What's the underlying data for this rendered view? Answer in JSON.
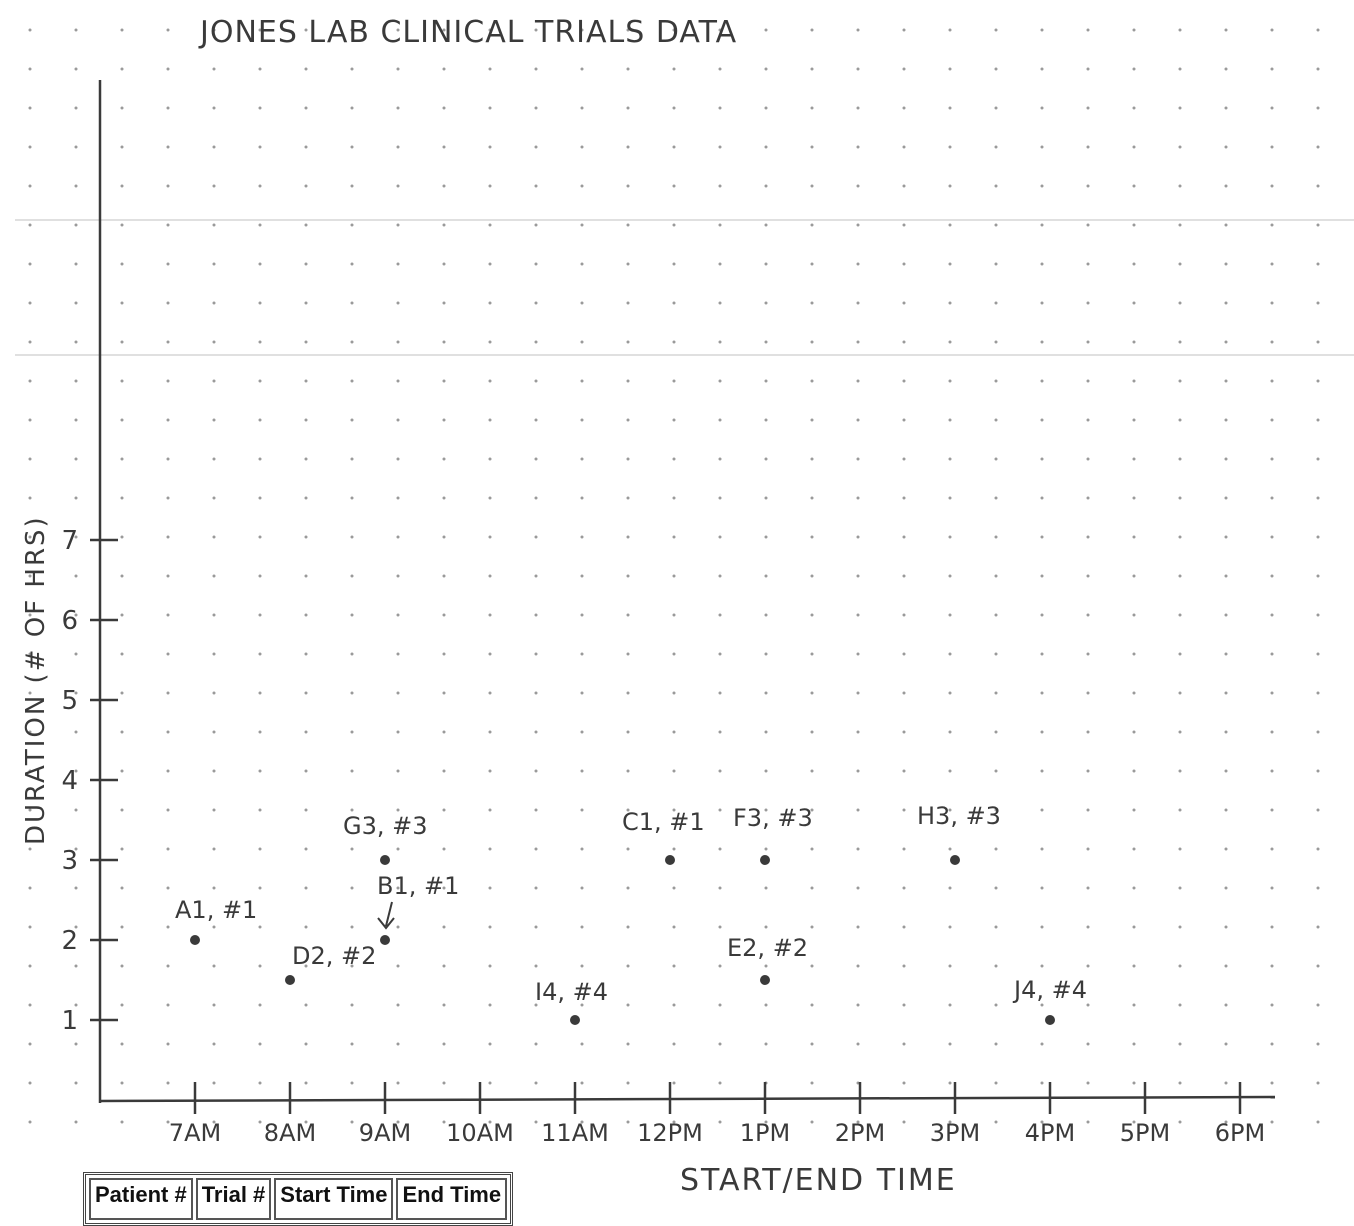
{
  "chart_data": {
    "type": "scatter",
    "title": "JONES LAB CLINICAL TRIALS DATA",
    "xlabel": "START/END TIME",
    "ylabel": "DURATION (# OF HRS)",
    "x_ticks": [
      "7AM",
      "8AM",
      "9AM",
      "10AM",
      "11AM",
      "12PM",
      "1PM",
      "2PM",
      "3PM",
      "4PM",
      "5PM",
      "6PM"
    ],
    "y_ticks": [
      "1",
      "2",
      "3",
      "4",
      "5",
      "6",
      "7"
    ],
    "xlim": [
      6,
      18.2
    ],
    "ylim": [
      0,
      7.5
    ],
    "grid": "dot grid",
    "points": [
      {
        "label": "A1, #1",
        "x": 7,
        "y": 2
      },
      {
        "label": "D2, #2",
        "x": 8,
        "y": 1.5
      },
      {
        "label": "G3, #3",
        "x": 9,
        "y": 3
      },
      {
        "label": "B1, #1",
        "x": 9,
        "y": 2
      },
      {
        "label": "I4, #4",
        "x": 11,
        "y": 1
      },
      {
        "label": "C1, #1",
        "x": 12,
        "y": 3
      },
      {
        "label": "F3, #3",
        "x": 13,
        "y": 3
      },
      {
        "label": "E2, #2",
        "x": 13,
        "y": 1.5
      },
      {
        "label": "H3, #3",
        "x": 15,
        "y": 3
      },
      {
        "label": "J4, #4",
        "x": 16,
        "y": 1
      }
    ]
  },
  "table": {
    "headers": [
      "Patient #",
      "Trial #",
      "Start Time",
      "End Time"
    ]
  },
  "colors": {
    "ink": "#3a3a3a",
    "dot_grid": "#9a9a9a",
    "faint_lines": "#d6d6d6",
    "paper": "#ffffff"
  }
}
